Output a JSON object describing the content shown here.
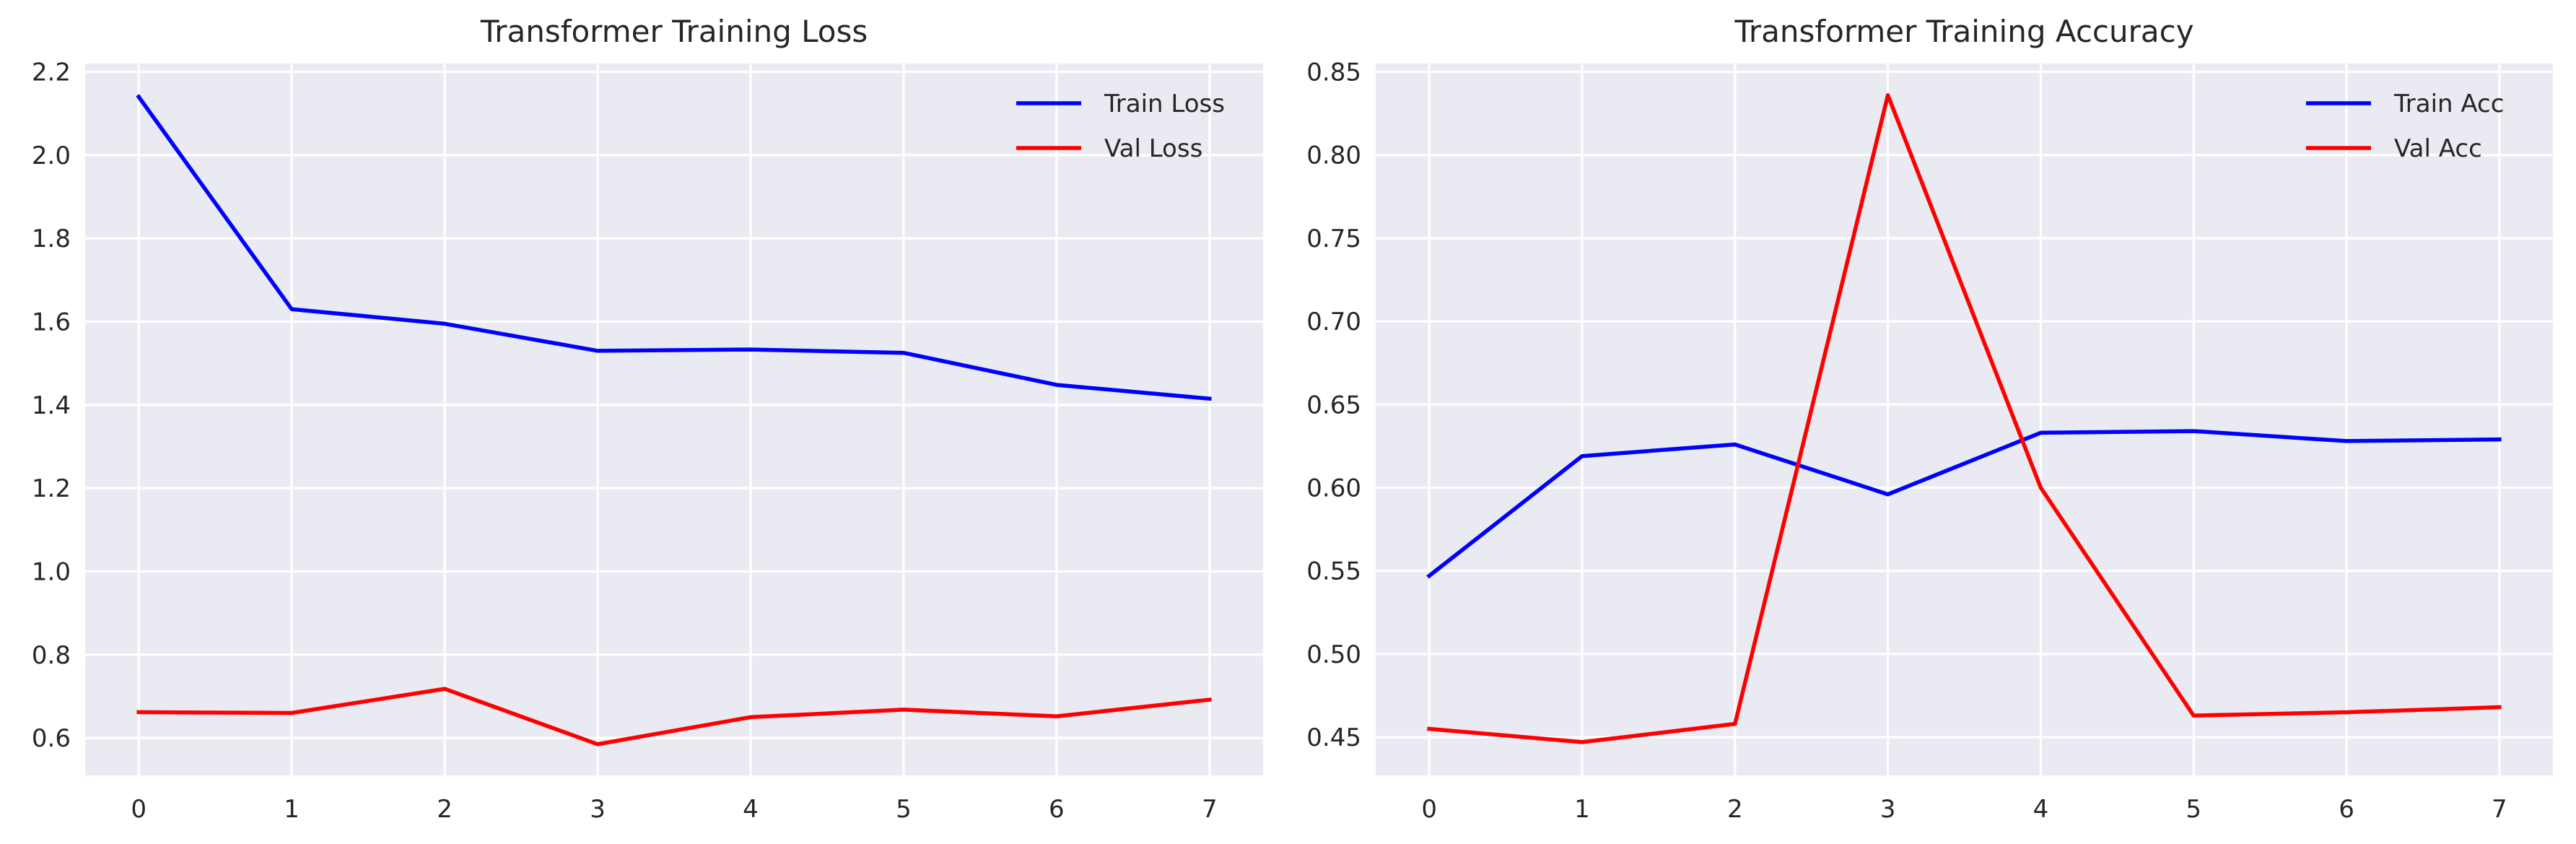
{
  "chart_data": [
    {
      "type": "line",
      "title": "Transformer Training Loss",
      "xlabel": "",
      "ylabel": "",
      "x": [
        0,
        1,
        2,
        3,
        4,
        5,
        6,
        7
      ],
      "xlim": [
        -0.35,
        7.35
      ],
      "ylim": [
        0.51,
        2.22
      ],
      "xticks": [
        0,
        1,
        2,
        3,
        4,
        5,
        6,
        7
      ],
      "yticks": [
        0.6,
        0.8,
        1.0,
        1.2,
        1.4,
        1.6,
        1.8,
        2.0,
        2.2
      ],
      "ytick_decimals": 1,
      "grid": true,
      "legend": "top-right",
      "series": [
        {
          "name": "Train Loss",
          "color": "#0000ff",
          "values": [
            2.14,
            1.63,
            1.595,
            1.53,
            1.533,
            1.525,
            1.448,
            1.415
          ]
        },
        {
          "name": "Val Loss",
          "color": "#ff0000",
          "values": [
            0.662,
            0.66,
            0.718,
            0.585,
            0.65,
            0.668,
            0.652,
            0.692
          ]
        }
      ]
    },
    {
      "type": "line",
      "title": "Transformer Training Accuracy",
      "xlabel": "",
      "ylabel": "",
      "x": [
        0,
        1,
        2,
        3,
        4,
        5,
        6,
        7
      ],
      "xlim": [
        -0.35,
        7.35
      ],
      "ylim": [
        0.427,
        0.855
      ],
      "xticks": [
        0,
        1,
        2,
        3,
        4,
        5,
        6,
        7
      ],
      "yticks": [
        0.45,
        0.5,
        0.55,
        0.6,
        0.65,
        0.7,
        0.75,
        0.8,
        0.85
      ],
      "ytick_decimals": 2,
      "grid": true,
      "legend": "top-right",
      "series": [
        {
          "name": "Train Acc",
          "color": "#0000ff",
          "values": [
            0.547,
            0.619,
            0.626,
            0.596,
            0.633,
            0.634,
            0.628,
            0.629
          ]
        },
        {
          "name": "Val Acc",
          "color": "#ff0000",
          "values": [
            0.455,
            0.447,
            0.458,
            0.836,
            0.6,
            0.463,
            0.465,
            0.468
          ]
        }
      ]
    }
  ]
}
